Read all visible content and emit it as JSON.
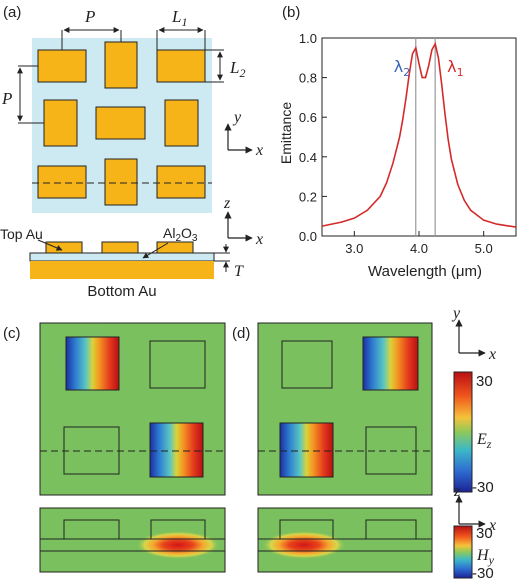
{
  "panels": {
    "a": {
      "label": "(a)"
    },
    "b": {
      "label": "(b)"
    },
    "c": {
      "label": "(c)"
    },
    "d": {
      "label": "(d)"
    }
  },
  "panel_a": {
    "dim_P_top": "P",
    "dim_L1": "L",
    "dim_L1_sub": "1",
    "dim_L2": "L",
    "dim_L2_sub": "2",
    "dim_P_left": "P",
    "axis_y": "y",
    "axis_x": "x",
    "axis_z": "z",
    "axis_x2": "x",
    "top_au": "Top Au",
    "al2o3_a": "Al",
    "al2o3_sub": "2",
    "al2o3_b": "O",
    "al2o3_sub2": "3",
    "thickness": "T",
    "bottom_au": "Bottom Au",
    "colors": {
      "background": "#cde9f2",
      "gold": "#f7b419",
      "outline": "#222222"
    }
  },
  "chart_data": {
    "type": "line",
    "xlabel": "Wavelength (μm)",
    "ylabel": "Emittance",
    "xlim": [
      2.5,
      5.5
    ],
    "ylim": [
      0.0,
      1.0
    ],
    "xticks": [
      "3.0",
      "4.0",
      "5.0"
    ],
    "yticks": [
      "0.0",
      "0.2",
      "0.4",
      "0.6",
      "0.8",
      "1.0"
    ],
    "series": [
      {
        "color": "#d42a2a",
        "x": [
          2.5,
          2.8,
          3.0,
          3.2,
          3.4,
          3.5,
          3.6,
          3.7,
          3.75,
          3.8,
          3.85,
          3.9,
          3.95,
          4.0,
          4.05,
          4.1,
          4.15,
          4.2,
          4.25,
          4.3,
          4.35,
          4.4,
          4.45,
          4.5,
          4.6,
          4.7,
          4.8,
          5.0,
          5.2,
          5.4,
          5.5
        ],
        "y": [
          0.05,
          0.07,
          0.09,
          0.13,
          0.2,
          0.27,
          0.37,
          0.5,
          0.59,
          0.7,
          0.82,
          0.92,
          0.95,
          0.87,
          0.8,
          0.8,
          0.86,
          0.94,
          0.97,
          0.9,
          0.77,
          0.62,
          0.49,
          0.39,
          0.26,
          0.18,
          0.13,
          0.08,
          0.06,
          0.05,
          0.045
        ]
      }
    ],
    "markers": [
      {
        "x": 3.95,
        "label": "λ",
        "sub": "2",
        "color": "#3d63b8"
      },
      {
        "x": 4.25,
        "label": "λ",
        "sub": "1",
        "color": "#d42a2a"
      }
    ],
    "marker_line_color": "#999999"
  },
  "colorbar_ez": {
    "max": "30",
    "min": "-30",
    "name": "E",
    "sub": "z"
  },
  "colorbar_hy": {
    "max": "30",
    "min": "-30",
    "name": "H",
    "sub": "y"
  },
  "axes_cd": {
    "y": "y",
    "x": "x",
    "z": "z",
    "x2": "x"
  },
  "field_colors": {
    "background": "#7bc05e",
    "red": "#d81f1f",
    "blue": "#2a3fb8"
  }
}
